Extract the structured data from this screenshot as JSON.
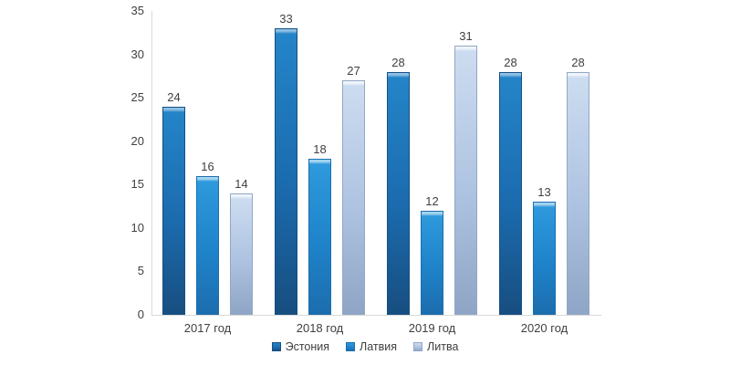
{
  "chart_data": {
    "type": "bar",
    "title": "",
    "categories": [
      "2017 год",
      "2018 год",
      "2019 год",
      "2020 год"
    ],
    "series": [
      {
        "name": "Эстония",
        "values": [
          24,
          33,
          28,
          28
        ],
        "colors": {
          "cap": "#8FC0E4",
          "top": "#2484C8",
          "mid": "#1B6BAE",
          "bottom": "#174E80",
          "border": "#155083"
        }
      },
      {
        "name": "Латвия",
        "values": [
          16,
          18,
          12,
          13
        ],
        "colors": {
          "cap": "#A5D5F0",
          "top": "#2E99DC",
          "mid": "#1F83CA",
          "bottom": "#1C6DAE",
          "border": "#1C6FAF"
        }
      },
      {
        "name": "Литва",
        "values": [
          14,
          27,
          31,
          28
        ],
        "colors": {
          "cap": "#F0F5FC",
          "top": "#CCDCF0",
          "mid": "#AEC3E1",
          "bottom": "#8FA5C5",
          "border": "#93A7C4"
        }
      }
    ],
    "ylim": [
      0,
      35
    ],
    "yticks": [
      0,
      5,
      10,
      15,
      20,
      25,
      30,
      35
    ],
    "xlabel": "",
    "ylabel": "",
    "grid": "off",
    "value_labels": true,
    "legend_position": "bottom",
    "axis_color": "#D9D9D9",
    "text_color": "#404040",
    "background_color": "#FFFFFF"
  }
}
